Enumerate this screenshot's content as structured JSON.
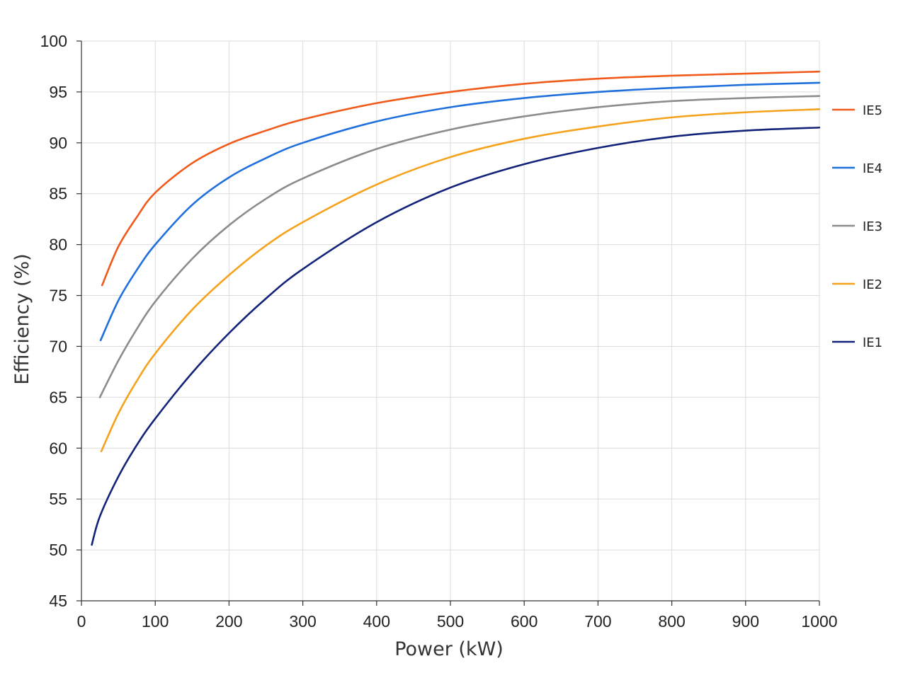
{
  "chart_data": {
    "type": "line",
    "title": "",
    "xlabel": "Power (kW)",
    "ylabel": "Efficiency (%)",
    "xlim": [
      0,
      1000
    ],
    "ylim": [
      45,
      100
    ],
    "x_ticks": [
      0,
      100,
      200,
      300,
      400,
      500,
      600,
      700,
      800,
      900,
      1000
    ],
    "y_ticks": [
      45,
      50,
      55,
      60,
      65,
      70,
      75,
      80,
      85,
      90,
      95,
      100
    ],
    "grid": true,
    "legend_position": "right",
    "series": [
      {
        "name": "IE5",
        "color": "#f05a1a",
        "x": [
          28,
          50,
          75,
          100,
          150,
          200,
          250,
          300,
          400,
          500,
          600,
          700,
          800,
          900,
          1000
        ],
        "y": [
          76.0,
          79.8,
          82.7,
          85.1,
          88.0,
          89.9,
          91.2,
          92.3,
          93.9,
          95.0,
          95.8,
          96.3,
          96.6,
          96.8,
          97.0
        ]
      },
      {
        "name": "IE4",
        "color": "#1f6fdc",
        "x": [
          26,
          50,
          75,
          100,
          150,
          200,
          250,
          300,
          400,
          500,
          600,
          700,
          800,
          900,
          1000
        ],
        "y": [
          70.6,
          74.5,
          77.5,
          80.0,
          83.9,
          86.6,
          88.5,
          90.0,
          92.1,
          93.5,
          94.4,
          95.0,
          95.4,
          95.7,
          95.9
        ]
      },
      {
        "name": "IE3",
        "color": "#8c8c8c",
        "x": [
          25,
          50,
          75,
          100,
          150,
          200,
          250,
          300,
          400,
          500,
          600,
          700,
          800,
          900,
          1000
        ],
        "y": [
          65.0,
          68.6,
          71.7,
          74.4,
          78.6,
          81.9,
          84.5,
          86.5,
          89.4,
          91.3,
          92.6,
          93.5,
          94.1,
          94.4,
          94.6
        ]
      },
      {
        "name": "IE2",
        "color": "#f5a21c",
        "x": [
          27,
          50,
          75,
          100,
          150,
          200,
          250,
          300,
          400,
          500,
          600,
          700,
          800,
          900,
          1000
        ],
        "y": [
          59.7,
          63.4,
          66.6,
          69.3,
          73.6,
          77.0,
          79.9,
          82.2,
          85.9,
          88.6,
          90.4,
          91.6,
          92.5,
          93.0,
          93.3
        ]
      },
      {
        "name": "IE1",
        "color": "#14237a",
        "x": [
          14,
          25,
          50,
          75,
          100,
          150,
          200,
          250,
          300,
          400,
          500,
          600,
          700,
          800,
          900,
          1000
        ],
        "y": [
          50.5,
          53.3,
          57.2,
          60.3,
          62.9,
          67.4,
          71.3,
          74.7,
          77.6,
          82.2,
          85.6,
          87.9,
          89.5,
          90.6,
          91.2,
          91.5
        ]
      }
    ]
  }
}
